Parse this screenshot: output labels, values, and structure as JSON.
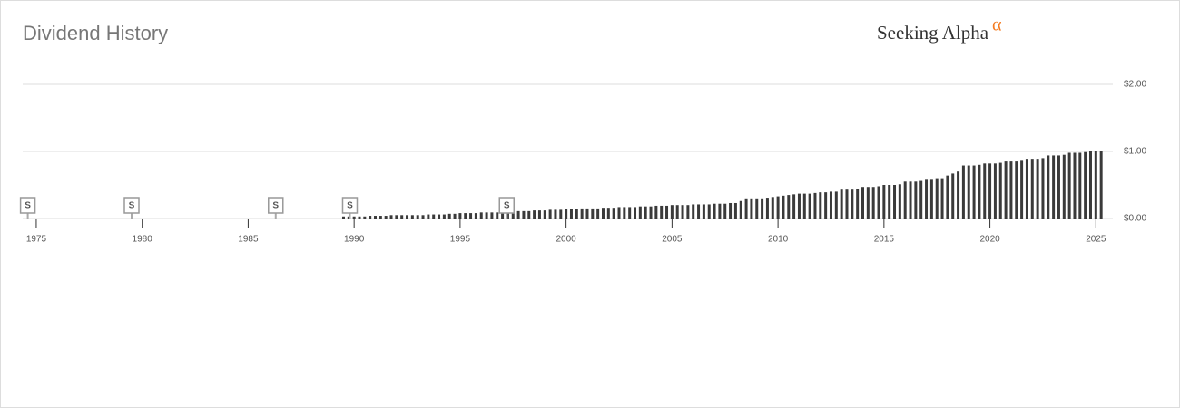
{
  "brand": "Seeking Alpha",
  "brand_mark": "α",
  "chart_data": {
    "type": "bar",
    "title": "Dividend History",
    "color": "#3a3a3a",
    "grid": true,
    "x": [
      1989.5,
      1989.75,
      1990,
      1990.25,
      1990.5,
      1990.75,
      1991,
      1991.25,
      1991.5,
      1991.75,
      1992,
      1992.25,
      1992.5,
      1992.75,
      1993,
      1993.25,
      1993.5,
      1993.75,
      1994,
      1994.25,
      1994.5,
      1994.75,
      1995,
      1995.25,
      1995.5,
      1995.75,
      1996,
      1996.25,
      1996.5,
      1996.75,
      1997,
      1997.25,
      1997.5,
      1997.75,
      1998,
      1998.25,
      1998.5,
      1998.75,
      1999,
      1999.25,
      1999.5,
      1999.75,
      2000,
      2000.25,
      2000.5,
      2000.75,
      2001,
      2001.25,
      2001.5,
      2001.75,
      2002,
      2002.25,
      2002.5,
      2002.75,
      2003,
      2003.25,
      2003.5,
      2003.75,
      2004,
      2004.25,
      2004.5,
      2004.75,
      2005,
      2005.25,
      2005.5,
      2005.75,
      2006,
      2006.25,
      2006.5,
      2006.75,
      2007,
      2007.25,
      2007.5,
      2007.75,
      2008,
      2008.25,
      2008.5,
      2008.75,
      2009,
      2009.25,
      2009.5,
      2009.75,
      2010,
      2010.25,
      2010.5,
      2010.75,
      2011,
      2011.25,
      2011.5,
      2011.75,
      2012,
      2012.25,
      2012.5,
      2012.75,
      2013,
      2013.25,
      2013.5,
      2013.75,
      2014,
      2014.25,
      2014.5,
      2014.75,
      2015,
      2015.25,
      2015.5,
      2015.75,
      2016,
      2016.25,
      2016.5,
      2016.75,
      2017,
      2017.25,
      2017.5,
      2017.75,
      2018,
      2018.25,
      2018.5,
      2018.75,
      2019,
      2019.25,
      2019.5,
      2019.75,
      2020,
      2020.25,
      2020.5,
      2020.75,
      2021,
      2021.25,
      2021.5,
      2021.75,
      2022,
      2022.25,
      2022.5,
      2022.75,
      2023,
      2023.25,
      2023.5,
      2023.75,
      2024,
      2024.25,
      2024.5,
      2024.75,
      2025,
      2025.25
    ],
    "values": [
      0.03,
      0.03,
      0.03,
      0.03,
      0.03,
      0.04,
      0.04,
      0.04,
      0.04,
      0.05,
      0.05,
      0.05,
      0.05,
      0.05,
      0.05,
      0.05,
      0.06,
      0.06,
      0.06,
      0.06,
      0.07,
      0.07,
      0.08,
      0.08,
      0.08,
      0.08,
      0.09,
      0.09,
      0.09,
      0.09,
      0.1,
      0.1,
      0.1,
      0.11,
      0.11,
      0.11,
      0.12,
      0.12,
      0.12,
      0.13,
      0.13,
      0.13,
      0.14,
      0.14,
      0.14,
      0.15,
      0.15,
      0.15,
      0.15,
      0.16,
      0.16,
      0.16,
      0.17,
      0.17,
      0.17,
      0.17,
      0.18,
      0.18,
      0.18,
      0.19,
      0.19,
      0.19,
      0.2,
      0.2,
      0.2,
      0.2,
      0.21,
      0.21,
      0.21,
      0.21,
      0.22,
      0.22,
      0.22,
      0.23,
      0.23,
      0.26,
      0.3,
      0.3,
      0.3,
      0.3,
      0.31,
      0.32,
      0.33,
      0.34,
      0.35,
      0.36,
      0.37,
      0.37,
      0.37,
      0.38,
      0.39,
      0.39,
      0.4,
      0.4,
      0.43,
      0.43,
      0.43,
      0.44,
      0.47,
      0.47,
      0.47,
      0.48,
      0.5,
      0.5,
      0.5,
      0.51,
      0.55,
      0.55,
      0.55,
      0.56,
      0.59,
      0.59,
      0.6,
      0.6,
      0.64,
      0.67,
      0.7,
      0.79,
      0.79,
      0.79,
      0.8,
      0.82,
      0.82,
      0.82,
      0.83,
      0.85,
      0.85,
      0.85,
      0.86,
      0.89,
      0.89,
      0.89,
      0.9,
      0.94,
      0.94,
      0.94,
      0.95,
      0.98,
      0.98,
      0.98,
      0.99,
      1.01,
      1.01,
      1.01
    ],
    "xlim": [
      1974.36,
      2025.8
    ],
    "xticks": [
      1975,
      1980,
      1985,
      1990,
      1995,
      2000,
      2005,
      2010,
      2015,
      2020,
      2025
    ],
    "ylim": [
      0,
      2
    ],
    "yticks": [
      {
        "value": 0,
        "label": "$0.00"
      },
      {
        "value": 1,
        "label": "$1.00"
      },
      {
        "value": 2,
        "label": "$2.00"
      }
    ],
    "split_markers": [
      {
        "x": 1974.6,
        "label": "S"
      },
      {
        "x": 1979.5,
        "label": "S"
      },
      {
        "x": 1986.3,
        "label": "S"
      },
      {
        "x": 1989.8,
        "label": "S"
      },
      {
        "x": 1997.2,
        "label": "S"
      }
    ]
  }
}
